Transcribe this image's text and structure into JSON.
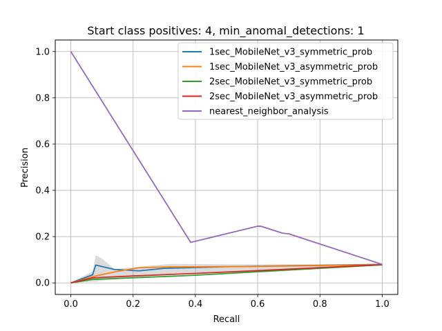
{
  "chart_data": {
    "type": "line",
    "title": "Start class positives: 4, min_anomal_detections: 1",
    "xlabel": "Recall",
    "ylabel": "Precision",
    "xlim": [
      -0.05,
      1.05
    ],
    "ylim": [
      -0.05,
      1.05
    ],
    "xticks": [
      "0.0",
      "0.2",
      "0.4",
      "0.6",
      "0.8",
      "1.0"
    ],
    "yticks": [
      "0.0",
      "0.2",
      "0.4",
      "0.6",
      "0.8",
      "1.0"
    ],
    "grid": true,
    "legend_position": "top-right",
    "series": [
      {
        "name": "1sec_MobileNet_v3_symmetric_prob",
        "color": "#1f77b4",
        "x": [
          0.0,
          0.07,
          0.08,
          0.14,
          0.22,
          0.3,
          0.5,
          1.0
        ],
        "y": [
          0.0,
          0.035,
          0.077,
          0.058,
          0.052,
          0.063,
          0.07,
          0.08
        ]
      },
      {
        "name": "1sec_MobileNet_v3_asymmetric_prob",
        "color": "#ff7f0e",
        "x": [
          0.0,
          0.08,
          0.15,
          0.22,
          0.32,
          0.6,
          0.8,
          1.0
        ],
        "y": [
          0.0,
          0.03,
          0.05,
          0.066,
          0.069,
          0.071,
          0.075,
          0.079
        ]
      },
      {
        "name": "2sec_MobileNet_v3_symmetric_prob",
        "color": "#2ca02c",
        "x": [
          0.0,
          0.07,
          0.2,
          0.4,
          0.6,
          0.8,
          1.0
        ],
        "y": [
          0.0,
          0.015,
          0.022,
          0.033,
          0.048,
          0.063,
          0.078
        ]
      },
      {
        "name": "2sec_MobileNet_v3_asymmetric_prob",
        "color": "#d62728",
        "x": [
          0.0,
          0.07,
          0.2,
          0.4,
          0.6,
          0.8,
          1.0
        ],
        "y": [
          0.0,
          0.022,
          0.03,
          0.041,
          0.053,
          0.066,
          0.079
        ]
      },
      {
        "name": "nearest_neighbor_analysis",
        "color": "#9467bd",
        "x": [
          0.0,
          0.385,
          0.6,
          0.61,
          0.68,
          0.7,
          1.0
        ],
        "y": [
          1.0,
          0.175,
          0.245,
          0.245,
          0.215,
          0.212,
          0.08
        ]
      }
    ],
    "confidence_band": {
      "color": "#888888",
      "x": [
        0.0,
        0.07,
        0.08,
        0.1,
        0.14,
        0.22,
        0.32,
        0.5,
        1.0
      ],
      "upper": [
        0.0,
        0.05,
        0.12,
        0.105,
        0.06,
        0.07,
        0.082,
        0.08,
        0.08
      ],
      "lower": [
        0.0,
        0.005,
        0.005,
        0.01,
        0.015,
        0.025,
        0.035,
        0.05,
        0.075
      ]
    }
  }
}
